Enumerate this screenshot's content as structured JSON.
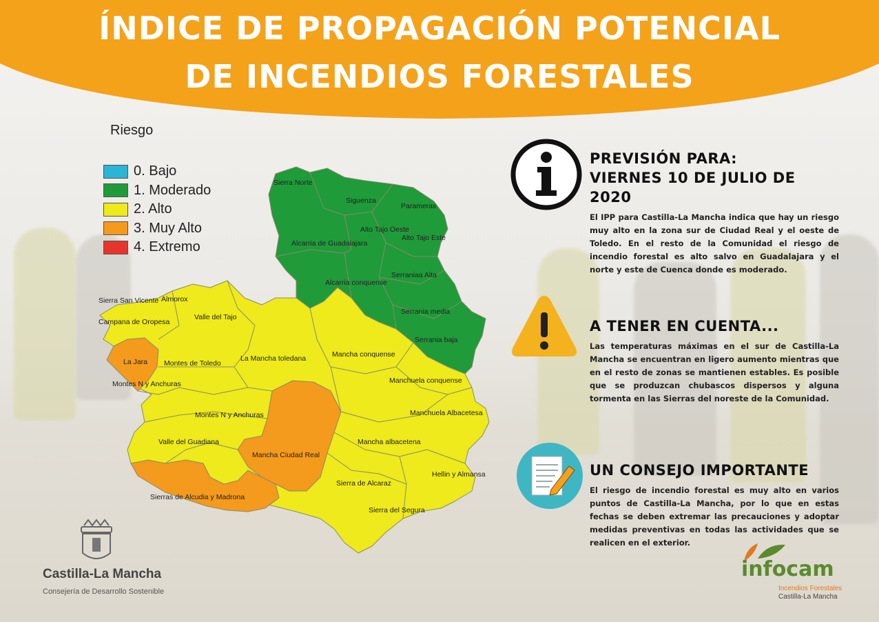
{
  "title": {
    "line1": "ÍNDICE DE PROPAGACIÓN POTENCIAL",
    "line2": "DE INCENDIOS FORESTALES"
  },
  "colors": {
    "banner": "#f4a21a",
    "bajo": "#2ab5d6",
    "moderado": "#1f9b3a",
    "alto": "#eeea1b",
    "muy_alto": "#f49a1d",
    "extremo": "#e8352c"
  },
  "legend": {
    "title": "Riesgo",
    "items": [
      {
        "label": "0. Bajo",
        "color": "#2ab5d6"
      },
      {
        "label": "1. Moderado",
        "color": "#1f9b3a"
      },
      {
        "label": "2. Alto",
        "color": "#eeea1b"
      },
      {
        "label": "3. Muy Alto",
        "color": "#f49a1d"
      },
      {
        "label": "4. Extremo",
        "color": "#e8352c"
      }
    ]
  },
  "regions": [
    {
      "name": "Sierra Norte",
      "risk": 1
    },
    {
      "name": "Siguenza",
      "risk": 1
    },
    {
      "name": "Parameras",
      "risk": 1
    },
    {
      "name": "Alto Tajo Oeste",
      "risk": 1
    },
    {
      "name": "Alto Tajo Este",
      "risk": 1
    },
    {
      "name": "Alcarria de Guadalajara",
      "risk": 1
    },
    {
      "name": "Serraniaa Alta",
      "risk": 1
    },
    {
      "name": "Alcarria conquense",
      "risk": 1
    },
    {
      "name": "Serrania media",
      "risk": 1
    },
    {
      "name": "Serrania baja",
      "risk": 1
    },
    {
      "name": "Sierra San Vicente",
      "risk": 2
    },
    {
      "name": "Almorox",
      "risk": 2
    },
    {
      "name": "Campana de Oropesa",
      "risk": 2
    },
    {
      "name": "Valle del Tajo",
      "risk": 2
    },
    {
      "name": "La Jara",
      "risk": 3
    },
    {
      "name": "Montes de Toledo",
      "risk": 2
    },
    {
      "name": "La Mancha toledana",
      "risk": 2
    },
    {
      "name": "Mancha conquense",
      "risk": 2
    },
    {
      "name": "Manchuela conquense",
      "risk": 2
    },
    {
      "name": "Montes N y Anchuras",
      "risk": 3
    },
    {
      "name": "Montes N y Anchuras",
      "risk": 2
    },
    {
      "name": "Manchuela Albacetesa",
      "risk": 2
    },
    {
      "name": "Valle del Guadiana",
      "risk": 2
    },
    {
      "name": "Mancha albacetena",
      "risk": 2
    },
    {
      "name": "Mancha Ciudad Real",
      "risk": 3
    },
    {
      "name": "Hellin y Almansa",
      "risk": 2
    },
    {
      "name": "Sierra de Alcaraz",
      "risk": 2
    },
    {
      "name": "Sierras de Alcudia y Madrona",
      "risk": 3
    },
    {
      "name": "Sierra del Segura",
      "risk": 2
    }
  ],
  "forecast": {
    "heading1": "PREVISIÓN PARA:",
    "heading2": "VIERNES 10 DE JULIO DE 2020",
    "text": "El IPP para Castilla-La Mancha indica que hay un riesgo muy alto en la zona sur de Ciudad Real y el oeste de Toledo. En el resto de la Comunidad el riesgo de incendio forestal es alto salvo en Guadalajara y el norte y este de Cuenca donde es moderado.",
    "icon": "info-icon"
  },
  "notice": {
    "heading": "A TENER EN CUENTA...",
    "text": "Las temperaturas máximas en el sur de Castilla-La Mancha se encuentran en ligero aumento mientras que en el resto de zonas se mantienen estables. Es posible que se produzcan chubascos dispersos y alguna tormenta en las Sierras del noreste de la Comunidad.",
    "icon": "warning-icon"
  },
  "advice": {
    "heading": "UN CONSEJO IMPORTANTE",
    "text": "El riesgo de incendio forestal es muy alto en varios puntos de Castilla-La Mancha, por lo que en estas fechas se deben extremar las precauciones y adoptar medidas preventivas en todas las actividades que se realicen en el exterior.",
    "icon": "document-pencil-icon"
  },
  "footer": {
    "clm_name": "Castilla-La Mancha",
    "clm_sub": "Consejería de Desarrollo Sostenible",
    "infocam_name": "infocam",
    "infocam_sub1": "Incendios Forestales",
    "infocam_sub2": "Castilla-La Mancha"
  }
}
